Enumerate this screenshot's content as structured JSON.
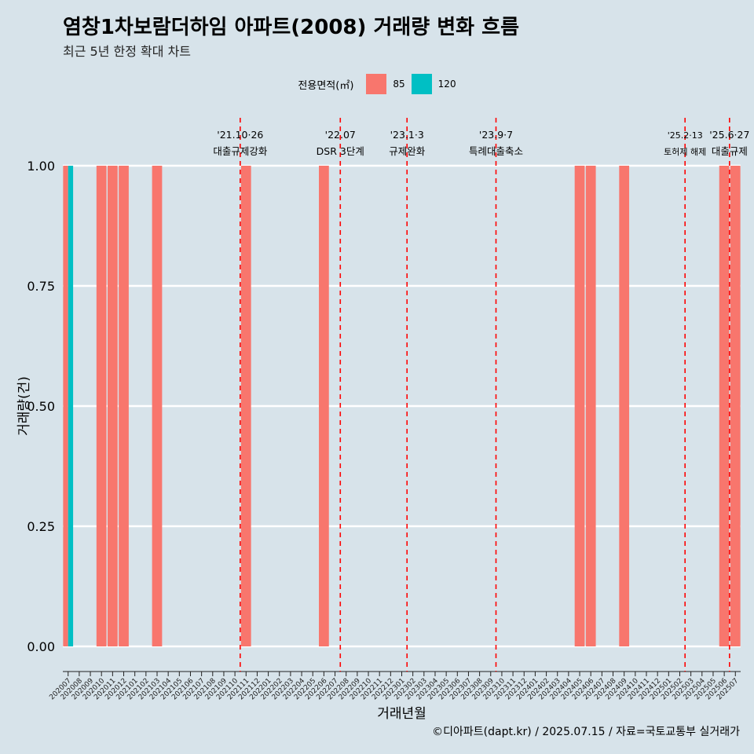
{
  "title": "염창1차보람더하임 아파트(2008) 거래량 변화 흐름",
  "subtitle": "최근 5년 한정 확대 차트",
  "caption": "©디아파트(dapt.kr) / 2025.07.15 / 자료=국토교통부 실거래가",
  "legend": {
    "title": "전용면적(㎡)",
    "items": [
      {
        "label": "85",
        "color": "#f8766d"
      },
      {
        "label": "120",
        "color": "#00bfc4"
      }
    ]
  },
  "chart_data": {
    "type": "bar",
    "xlabel": "거래년월",
    "ylabel": "거래량(건)",
    "ylim": [
      0,
      1
    ],
    "yticks": [
      "0.00",
      "0.25",
      "0.50",
      "0.75",
      "1.00"
    ],
    "grid": true,
    "categories": [
      "202007",
      "202008",
      "202009",
      "202010",
      "202011",
      "202012",
      "202101",
      "202102",
      "202103",
      "202104",
      "202105",
      "202106",
      "202107",
      "202108",
      "202109",
      "202110",
      "202111",
      "202112",
      "202201",
      "202202",
      "202203",
      "202204",
      "202205",
      "202206",
      "202207",
      "202208",
      "202209",
      "202210",
      "202211",
      "202212",
      "202301",
      "202302",
      "202303",
      "202304",
      "202305",
      "202306",
      "202307",
      "202308",
      "202309",
      "202310",
      "202311",
      "202312",
      "202401",
      "202402",
      "202403",
      "202404",
      "202405",
      "202406",
      "202407",
      "202408",
      "202409",
      "202410",
      "202411",
      "202412",
      "202501",
      "202502",
      "202503",
      "202504",
      "202505",
      "202506",
      "202507"
    ],
    "series": [
      {
        "name": "85",
        "color": "#f8766d",
        "points": [
          {
            "x": "202007",
            "y": 1
          },
          {
            "x": "202010",
            "y": 1
          },
          {
            "x": "202011",
            "y": 1
          },
          {
            "x": "202012",
            "y": 1
          },
          {
            "x": "202103",
            "y": 1
          },
          {
            "x": "202111",
            "y": 1
          },
          {
            "x": "202206",
            "y": 1
          },
          {
            "x": "202405",
            "y": 1
          },
          {
            "x": "202406",
            "y": 1
          },
          {
            "x": "202409",
            "y": 1
          },
          {
            "x": "202506",
            "y": 1
          },
          {
            "x": "202507",
            "y": 1
          }
        ]
      },
      {
        "name": "120",
        "color": "#00bfc4",
        "points": [
          {
            "x": "202007",
            "y": 1
          }
        ]
      }
    ],
    "annotations": [
      {
        "x": "202110",
        "line1": "'21.10·26",
        "line2": "대출규제강화"
      },
      {
        "x": "202207",
        "line1": "'22.07",
        "line2": "DSR 3단계"
      },
      {
        "x": "202301",
        "line1": "'23.1·3",
        "line2": "규제완화"
      },
      {
        "x": "202309",
        "line1": "'23.9·7",
        "line2": "특례대출축소"
      },
      {
        "x": "202502",
        "line1": "'25.2·13",
        "line2": "토허제 해제"
      },
      {
        "x": "202506",
        "line1": "'25.6·27",
        "line2": "대출규제"
      }
    ]
  }
}
